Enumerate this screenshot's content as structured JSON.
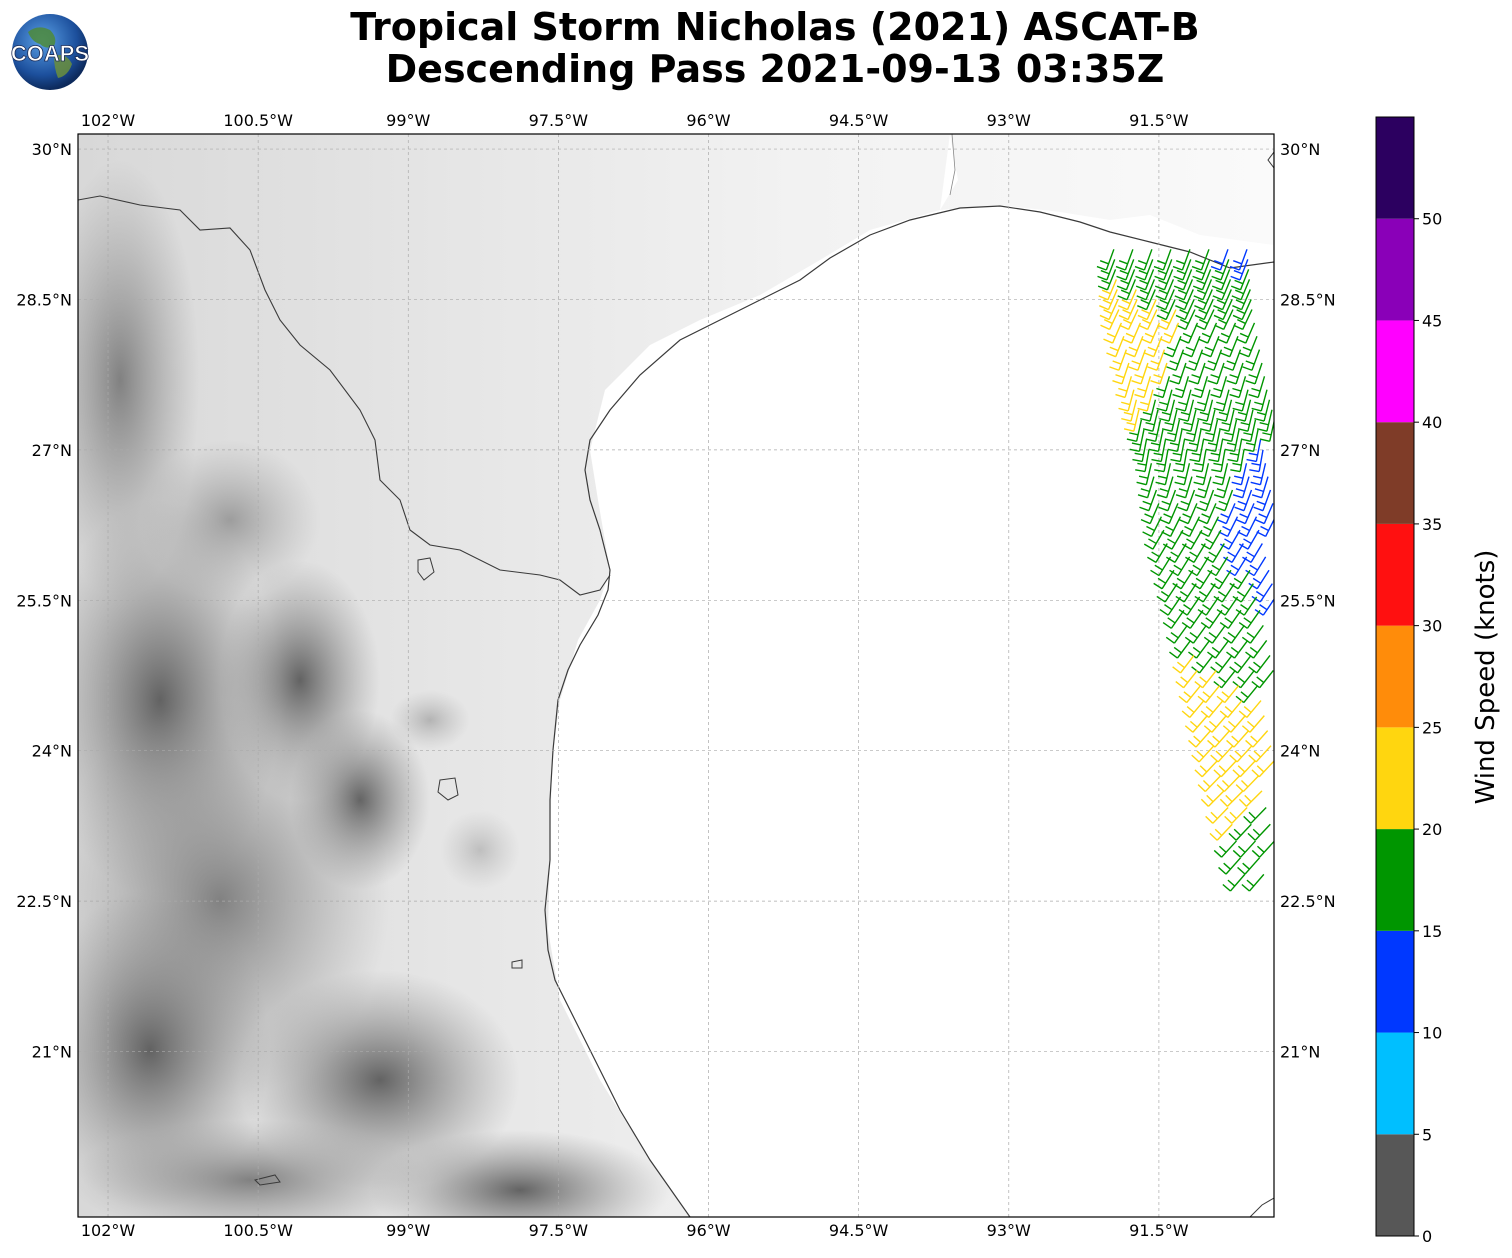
{
  "title": {
    "line1": "Tropical Storm Nicholas (2021) ASCAT-B",
    "line2": "Descending Pass 2021-09-13 03:35Z"
  },
  "logo": {
    "text": "COAPS"
  },
  "map": {
    "lon_range": [
      -102.3,
      -90.35
    ],
    "lat_range": [
      19.35,
      30.15
    ],
    "lon_ticks": [
      {
        "value": -102,
        "label": "102°W"
      },
      {
        "value": -100.5,
        "label": "100.5°W"
      },
      {
        "value": -99,
        "label": "99°W"
      },
      {
        "value": -97.5,
        "label": "97.5°W"
      },
      {
        "value": -96,
        "label": "96°W"
      },
      {
        "value": -94.5,
        "label": "94.5°W"
      },
      {
        "value": -93,
        "label": "93°W"
      },
      {
        "value": -91.5,
        "label": "91.5°W"
      }
    ],
    "lat_ticks": [
      {
        "value": 30,
        "label": "30°N"
      },
      {
        "value": 28.5,
        "label": "28.5°N"
      },
      {
        "value": 27,
        "label": "27°N"
      },
      {
        "value": 25.5,
        "label": "25.5°N"
      },
      {
        "value": 24,
        "label": "24°N"
      },
      {
        "value": 22.5,
        "label": "22.5°N"
      },
      {
        "value": 21,
        "label": "21°N"
      }
    ],
    "grid": true,
    "terrain": "grayscale"
  },
  "colorbar": {
    "label": "Wind Speed (knots)",
    "bins": [
      {
        "from": 0,
        "to": 5,
        "color": "#575757"
      },
      {
        "from": 5,
        "to": 10,
        "color": "#00bfff"
      },
      {
        "from": 10,
        "to": 15,
        "color": "#0038ff"
      },
      {
        "from": 15,
        "to": 20,
        "color": "#009600"
      },
      {
        "from": 20,
        "to": 25,
        "color": "#ffd60f"
      },
      {
        "from": 25,
        "to": 30,
        "color": "#ff8c0a"
      },
      {
        "from": 30,
        "to": 35,
        "color": "#ff1010"
      },
      {
        "from": 35,
        "to": 40,
        "color": "#7f3c28"
      },
      {
        "from": 40,
        "to": 45,
        "color": "#ff00ff"
      },
      {
        "from": 45,
        "to": 50,
        "color": "#8a00b8"
      },
      {
        "from": 50,
        "to": 55,
        "color": "#2c0060"
      }
    ],
    "tick_labels": [
      "0",
      "5",
      "10",
      "15",
      "20",
      "25",
      "30",
      "35",
      "40",
      "45",
      "50"
    ]
  },
  "wind_barbs": {
    "swath": [
      {
        "lat": 29.0,
        "lon_start": -91.95,
        "speed": 18,
        "dir_deg": 110
      },
      {
        "lat": 28.4,
        "lon_start": -91.9,
        "speed": 22,
        "dir_deg": 115
      },
      {
        "lat": 27.6,
        "lon_start": -91.75,
        "speed": 21,
        "dir_deg": 105
      },
      {
        "lat": 27.0,
        "lon_start": -91.6,
        "speed": 18,
        "dir_deg": 100
      },
      {
        "lat": 26.2,
        "lon_start": -91.45,
        "speed": 17,
        "dir_deg": 120
      },
      {
        "lat": 25.4,
        "lon_start": -91.25,
        "speed": 18,
        "dir_deg": 125
      },
      {
        "lat": 24.5,
        "lon_start": -91.05,
        "speed": 22,
        "dir_deg": 130
      },
      {
        "lat": 23.6,
        "lon_start": -90.85,
        "speed": 22,
        "dir_deg": 135
      },
      {
        "lat": 22.6,
        "lon_start": -90.6,
        "speed": 17,
        "dir_deg": 130
      }
    ]
  }
}
